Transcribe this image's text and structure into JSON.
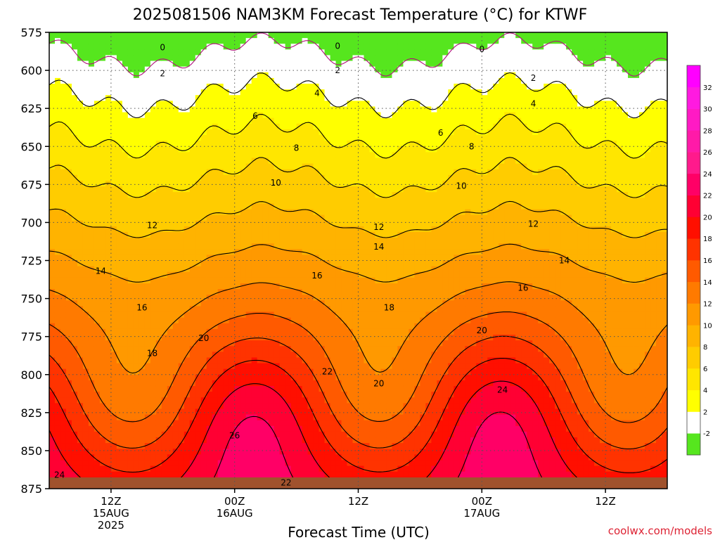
{
  "chart_data": {
    "type": "time-height contour",
    "title": "2025081506 NAM3KM Forecast Temperature (°C) for KTWF",
    "xlabel": "Forecast Time (UTC)",
    "ylabel": "",
    "y_ticks": [
      "575",
      "600",
      "625",
      "650",
      "675",
      "700",
      "725",
      "750",
      "775",
      "800",
      "825",
      "850",
      "875"
    ],
    "ylim": [
      575,
      875
    ],
    "x_ticks": [
      {
        "line1": "12Z",
        "line2": "15AUG",
        "line3": "2025",
        "hours": 6
      },
      {
        "line1": "00Z",
        "line2": "16AUG",
        "line3": "",
        "hours": 18
      },
      {
        "line1": "12Z",
        "line2": "",
        "line3": "",
        "hours": 30
      },
      {
        "line1": "00Z",
        "line2": "17AUG",
        "line3": "",
        "hours": 42
      },
      {
        "line1": "12Z",
        "line2": "",
        "line3": "",
        "hours": 54
      }
    ],
    "xlim_hours": [
      0,
      60
    ],
    "grid": "dotted",
    "colorbar": {
      "labels": [
        "-2",
        "2",
        "4",
        "6",
        "8",
        "10",
        "12",
        "14",
        "16",
        "18",
        "20",
        "22",
        "24",
        "26",
        "28",
        "30",
        "32"
      ],
      "colors": [
        "#56e61e",
        "#ffffff",
        "#ffff00",
        "#ffe600",
        "#ffcc00",
        "#ffb300",
        "#ff9900",
        "#ff7a00",
        "#ff5a00",
        "#ff3300",
        "#ff0f00",
        "#ff0033",
        "#ff0066",
        "#ff1a8c",
        "#ff1aa8",
        "#ff1ac4",
        "#ff1ae0",
        "#ff00ff"
      ]
    },
    "contour_labels": [
      {
        "t": 11,
        "p": 585,
        "v": "0"
      },
      {
        "t": 28,
        "p": 584,
        "v": "0"
      },
      {
        "t": 42,
        "p": 586,
        "v": "0"
      },
      {
        "t": 11,
        "p": 602,
        "v": "2"
      },
      {
        "t": 28,
        "p": 600,
        "v": "2"
      },
      {
        "t": 47,
        "p": 605,
        "v": "2"
      },
      {
        "t": 26,
        "p": 615,
        "v": "4"
      },
      {
        "t": 47,
        "p": 622,
        "v": "4"
      },
      {
        "t": 20,
        "p": 630,
        "v": "6"
      },
      {
        "t": 38,
        "p": 641,
        "v": "6"
      },
      {
        "t": 24,
        "p": 651,
        "v": "8"
      },
      {
        "t": 41,
        "p": 650,
        "v": "8"
      },
      {
        "t": 22,
        "p": 674,
        "v": "10"
      },
      {
        "t": 40,
        "p": 676,
        "v": "10"
      },
      {
        "t": 10,
        "p": 702,
        "v": "12"
      },
      {
        "t": 32,
        "p": 703,
        "v": "12"
      },
      {
        "t": 47,
        "p": 701,
        "v": "12"
      },
      {
        "t": 32,
        "p": 716,
        "v": "14"
      },
      {
        "t": 50,
        "p": 725,
        "v": "14"
      },
      {
        "t": 5,
        "p": 732,
        "v": "14"
      },
      {
        "t": 26,
        "p": 735,
        "v": "16"
      },
      {
        "t": 46,
        "p": 743,
        "v": "16"
      },
      {
        "t": 9,
        "p": 756,
        "v": "16"
      },
      {
        "t": 33,
        "p": 756,
        "v": "18"
      },
      {
        "t": 10,
        "p": 786,
        "v": "18"
      },
      {
        "t": 15,
        "p": 776,
        "v": "20"
      },
      {
        "t": 42,
        "p": 771,
        "v": "20"
      },
      {
        "t": 32,
        "p": 806,
        "v": "20"
      },
      {
        "t": 27,
        "p": 798,
        "v": "22"
      },
      {
        "t": 23,
        "p": 871,
        "v": "22"
      },
      {
        "t": 44,
        "p": 810,
        "v": "24"
      },
      {
        "t": 1,
        "p": 866,
        "v": "24"
      },
      {
        "t": 18,
        "p": 840,
        "v": "26"
      }
    ]
  },
  "credit": "coolwx.com/models"
}
